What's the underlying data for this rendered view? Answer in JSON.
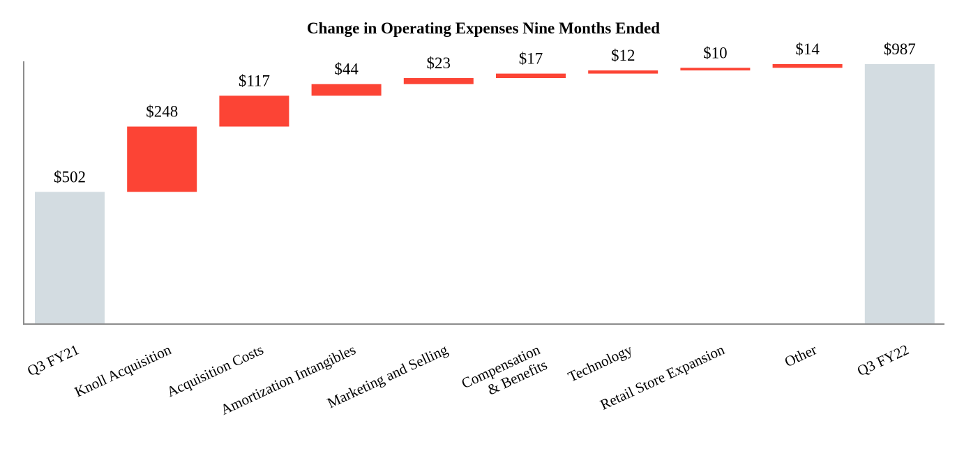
{
  "chart_data": {
    "type": "bar",
    "subtype": "waterfall",
    "title": "Change in Operating Expenses Nine Months Ended",
    "xlabel": "",
    "ylabel": "",
    "ylim": [
      0,
      1000
    ],
    "grid": false,
    "legend": "none",
    "categories": [
      "Q3 FY21",
      "Knoll Acquisition",
      "Acquisition Costs",
      "Amortization Intangibles",
      "Marketing and Selling",
      "Compensation\n& Benefits",
      "Technology",
      "Retail Store Expansion",
      "Other",
      "Q3 FY22"
    ],
    "values": [
      502,
      248,
      117,
      44,
      23,
      17,
      12,
      10,
      14,
      987
    ],
    "labels": [
      "$502",
      "$248",
      "$117",
      "$44",
      "$23",
      "$17",
      "$12",
      "$10",
      "$14",
      "$987"
    ],
    "kinds": [
      "total",
      "increase",
      "increase",
      "increase",
      "increase",
      "increase",
      "increase",
      "increase",
      "increase",
      "total"
    ],
    "colors": {
      "total": "#d3dce1",
      "increase": "#fc4435",
      "axis": "#8c8c8c"
    }
  }
}
